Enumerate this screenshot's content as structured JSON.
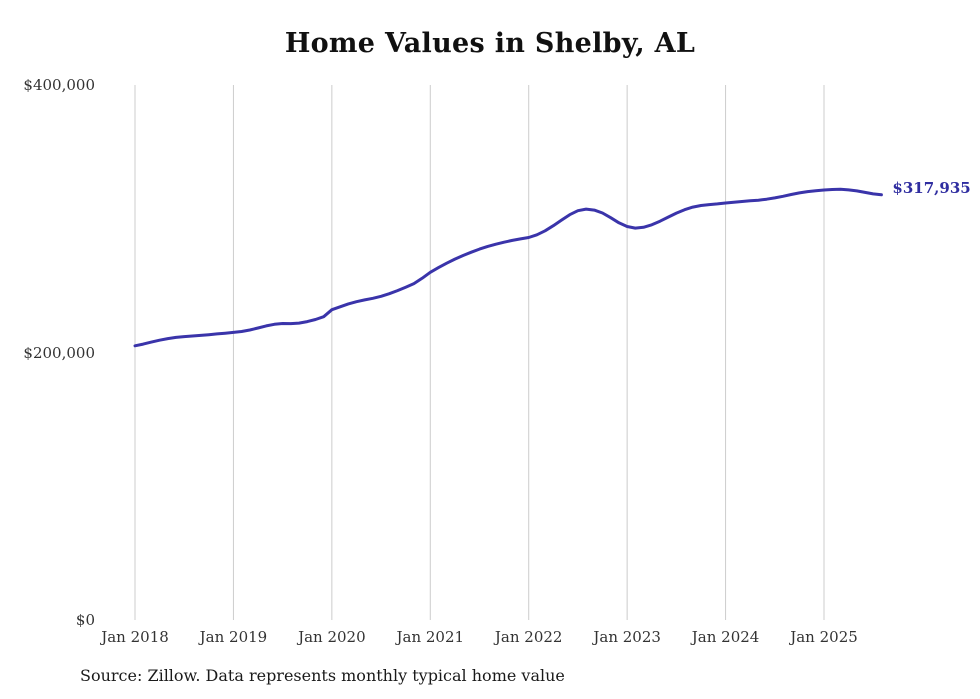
{
  "title": "Home Values in Shelby, AL",
  "source_note": "Source: Zillow. Data represents monthly typical home value",
  "colors": {
    "line": "#3a34aa",
    "value_label": "#2f2da0",
    "grid": "#cccccc",
    "axis_text": "#333333",
    "title_text": "#111111",
    "background": "#ffffff"
  },
  "chart_data": {
    "type": "line",
    "title": "Home Values in Shelby, AL",
    "xlabel": "",
    "ylabel": "",
    "ylim": [
      0,
      400000
    ],
    "grid": "vertical",
    "legend": "none",
    "y_ticks": [
      {
        "label": "$0",
        "value": 0
      },
      {
        "label": "$200,000",
        "value": 200000
      },
      {
        "label": "$400,000",
        "value": 400000
      }
    ],
    "x_ticks": [
      {
        "label": "Jan 2018",
        "month_index": 0
      },
      {
        "label": "Jan 2019",
        "month_index": 12
      },
      {
        "label": "Jan 2020",
        "month_index": 24
      },
      {
        "label": "Jan 2021",
        "month_index": 36
      },
      {
        "label": "Jan 2022",
        "month_index": 48
      },
      {
        "label": "Jan 2023",
        "month_index": 60
      },
      {
        "label": "Jan 2024",
        "month_index": 72
      },
      {
        "label": "Jan 2025",
        "month_index": 84
      }
    ],
    "series": [
      {
        "name": "Monthly typical home value",
        "start_month": "Jan 2018",
        "frequency": "monthly",
        "latest_label": "$317,935",
        "latest_value": 317935,
        "values": [
          205000,
          206300,
          207800,
          209200,
          210400,
          211300,
          211900,
          212300,
          212800,
          213300,
          213900,
          214400,
          215000,
          215700,
          216800,
          218300,
          219900,
          221100,
          221700,
          221600,
          222000,
          223100,
          224700,
          226800,
          232000,
          234200,
          236300,
          238000,
          239300,
          240500,
          242000,
          244000,
          246300,
          248800,
          251500,
          255500,
          260000,
          263500,
          266800,
          269800,
          272500,
          275000,
          277300,
          279300,
          281000,
          282500,
          283800,
          284900,
          286000,
          288000,
          291000,
          294800,
          299000,
          303000,
          306000,
          307200,
          306500,
          304300,
          300800,
          297000,
          294200,
          293000,
          293600,
          295500,
          298200,
          301200,
          304200,
          306800,
          308700,
          309900,
          310600,
          311100,
          311800,
          312400,
          312900,
          313400,
          313900,
          314600,
          315600,
          316800,
          318100,
          319300,
          320300,
          321000,
          321500,
          321900,
          322000,
          321600,
          320800,
          319700,
          318600,
          317935
        ]
      }
    ]
  }
}
